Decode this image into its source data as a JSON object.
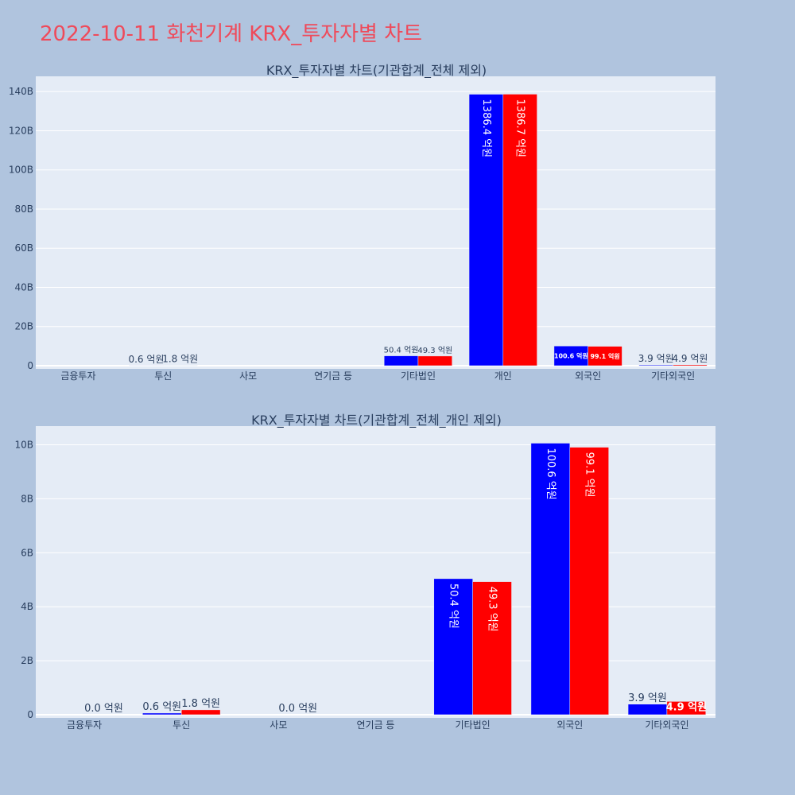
{
  "page_title": "2022-10-11 화천기계 KRX_투자자별 차트",
  "colors": {
    "series_a": "#0000ff",
    "series_b": "#ff0000",
    "plot_bg": "#e5ecf6",
    "paper_bg": "#b0c4de",
    "title": "#ef4a5a",
    "text": "#2a3f5f"
  },
  "chart_data": [
    {
      "type": "bar",
      "title": "KRX_투자자별 차트(기관합계_전체 제외)",
      "categories": [
        "금융투자",
        "투신",
        "사모",
        "연기금 등",
        "기타법인",
        "개인",
        "외국인",
        "기타외국인"
      ],
      "y_tick_labels": [
        "0",
        "20B",
        "40B",
        "60B",
        "80B",
        "100B",
        "120B",
        "140B"
      ],
      "ylim": [
        0,
        147
      ],
      "grid": true,
      "series": [
        {
          "values": [
            0,
            0.06,
            0,
            0,
            5.04,
            138.64,
            10.06,
            0.39
          ],
          "labels": [
            "",
            "0.6 억원",
            "",
            "",
            "50.4 억원",
            "1386.4 억원",
            "100.6 억원",
            "3.9 억원"
          ]
        },
        {
          "values": [
            0,
            0.18,
            0,
            0,
            4.93,
            138.67,
            9.91,
            0.49
          ],
          "labels": [
            "",
            "1.8 억원",
            "",
            "",
            "49.3 억원",
            "1386.7 억원",
            "99.1 억원",
            "4.9 억원"
          ]
        }
      ]
    },
    {
      "type": "bar",
      "title": "KRX_투자자별 차트(기관합계_전체_개인 제외)",
      "categories": [
        "금융투자",
        "투신",
        "사모",
        "연기금 등",
        "기타법인",
        "외국인",
        "기타외국인"
      ],
      "y_tick_labels": [
        "0",
        "2B",
        "4B",
        "6B",
        "8B",
        "10B"
      ],
      "ylim": [
        0,
        10.7
      ],
      "grid": true,
      "series": [
        {
          "values": [
            0,
            0.06,
            0,
            0,
            5.04,
            10.06,
            0.39
          ],
          "labels": [
            "",
            "0.6 억원",
            "",
            "",
            "50.4 억원",
            "100.6 억원",
            "3.9 억원"
          ]
        },
        {
          "values": [
            0,
            0.18,
            0,
            0,
            4.93,
            9.91,
            0.49
          ],
          "labels": [
            "0.0 억원",
            "1.8 억원",
            "0.0 억원",
            "",
            "49.3 억원",
            "99.1 억원",
            "4.9 억원"
          ]
        }
      ]
    }
  ]
}
